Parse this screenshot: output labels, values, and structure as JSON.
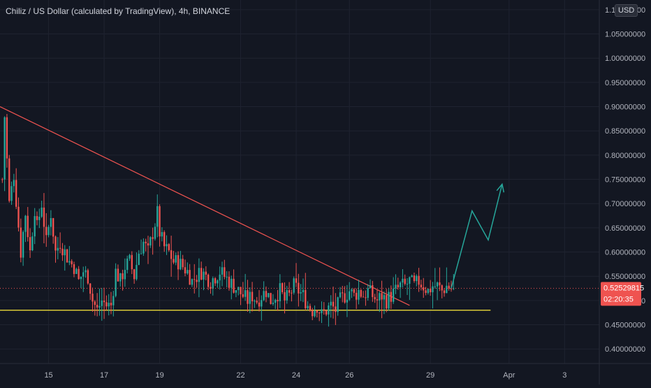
{
  "header": {
    "title": "Chiliz / US Dollar (calculated by TradingView), 4h, BINANCE",
    "currency": "USD"
  },
  "price_scale": {
    "ticks": [
      "1.10000000",
      "1.05000000",
      "1.00000000",
      "0.95000000",
      "0.90000000",
      "0.85000000",
      "0.80000000",
      "0.75000000",
      "0.70000000",
      "0.65000000",
      "0.60000000",
      "0.55000000",
      "0.50000000",
      "0.45000000",
      "0.40000000"
    ],
    "current_price_label": "0.52529815",
    "countdown_label": "02:20:35"
  },
  "time_scale": {
    "ticks": [
      {
        "label": "15",
        "bar": 20
      },
      {
        "label": "17",
        "bar": 44
      },
      {
        "label": "19",
        "bar": 68
      },
      {
        "label": "22",
        "bar": 103
      },
      {
        "label": "24",
        "bar": 127
      },
      {
        "label": "26",
        "bar": 150
      },
      {
        "label": "29",
        "bar": 185
      },
      {
        "label": "Apr",
        "bar": 219
      },
      {
        "label": "3",
        "bar": 243
      }
    ]
  },
  "colors": {
    "background": "#131722",
    "grid": "#1f2330",
    "up": "#26a69a",
    "down": "#ef5350",
    "trendline": "#ef5350",
    "support": "#ffeb3b",
    "projection": "#26a69a",
    "text": "#b2b5be",
    "price_badge": "#ef5350"
  },
  "chart_data": {
    "type": "candlestick",
    "symbol": "Chiliz / US Dollar",
    "interval": "4h",
    "exchange": "BINANCE",
    "ylim": [
      0.37,
      1.12
    ],
    "bar_count": 196,
    "bar_range": [
      -1,
      258
    ],
    "current_price": 0.52529815,
    "waypoints": [
      [
        0,
        0.75
      ],
      [
        1,
        0.88
      ],
      [
        3,
        0.7
      ],
      [
        5,
        0.76
      ],
      [
        8,
        0.6
      ],
      [
        10,
        0.68
      ],
      [
        12,
        0.6
      ],
      [
        14,
        0.69
      ],
      [
        15,
        0.65
      ],
      [
        17,
        0.7
      ],
      [
        19,
        0.62
      ],
      [
        21,
        0.68
      ],
      [
        23,
        0.6
      ],
      [
        25,
        0.62
      ],
      [
        27,
        0.6
      ],
      [
        29,
        0.58
      ],
      [
        31,
        0.57
      ],
      [
        33,
        0.54
      ],
      [
        35,
        0.56
      ],
      [
        37,
        0.55
      ],
      [
        39,
        0.5
      ],
      [
        41,
        0.48
      ],
      [
        43,
        0.5
      ],
      [
        45,
        0.49
      ],
      [
        47,
        0.49
      ],
      [
        49,
        0.56
      ],
      [
        51,
        0.54
      ],
      [
        53,
        0.57
      ],
      [
        55,
        0.58
      ],
      [
        57,
        0.55
      ],
      [
        59,
        0.6
      ],
      [
        61,
        0.62
      ],
      [
        63,
        0.6
      ],
      [
        65,
        0.64
      ],
      [
        67,
        0.68
      ],
      [
        68,
        0.64
      ],
      [
        70,
        0.61
      ],
      [
        72,
        0.6
      ],
      [
        74,
        0.58
      ],
      [
        76,
        0.58
      ],
      [
        78,
        0.57
      ],
      [
        80,
        0.56
      ],
      [
        82,
        0.54
      ],
      [
        84,
        0.55
      ],
      [
        86,
        0.56
      ],
      [
        88,
        0.55
      ],
      [
        90,
        0.54
      ],
      [
        92,
        0.55
      ],
      [
        94,
        0.56
      ],
      [
        96,
        0.55
      ],
      [
        98,
        0.54
      ],
      [
        100,
        0.53
      ],
      [
        102,
        0.52
      ],
      [
        104,
        0.51
      ],
      [
        106,
        0.5
      ],
      [
        108,
        0.51
      ],
      [
        110,
        0.5
      ],
      [
        112,
        0.51
      ],
      [
        114,
        0.52
      ],
      [
        116,
        0.5
      ],
      [
        118,
        0.51
      ],
      [
        120,
        0.52
      ],
      [
        122,
        0.5
      ],
      [
        124,
        0.51
      ],
      [
        126,
        0.53
      ],
      [
        128,
        0.52
      ],
      [
        130,
        0.51
      ],
      [
        132,
        0.49
      ],
      [
        134,
        0.48
      ],
      [
        136,
        0.49
      ],
      [
        138,
        0.47
      ],
      [
        140,
        0.48
      ],
      [
        142,
        0.49
      ],
      [
        144,
        0.48
      ],
      [
        146,
        0.5
      ],
      [
        148,
        0.51
      ],
      [
        150,
        0.52
      ],
      [
        152,
        0.51
      ],
      [
        154,
        0.52
      ],
      [
        156,
        0.51
      ],
      [
        158,
        0.52
      ],
      [
        160,
        0.51
      ],
      [
        162,
        0.5
      ],
      [
        164,
        0.51
      ],
      [
        166,
        0.5
      ],
      [
        168,
        0.51
      ],
      [
        170,
        0.52
      ],
      [
        172,
        0.53
      ],
      [
        174,
        0.53
      ],
      [
        176,
        0.54
      ],
      [
        178,
        0.53
      ],
      [
        180,
        0.54
      ],
      [
        182,
        0.53
      ],
      [
        184,
        0.52
      ],
      [
        186,
        0.53
      ],
      [
        188,
        0.53
      ],
      [
        190,
        0.52
      ],
      [
        192,
        0.53
      ],
      [
        194,
        0.525
      ]
    ],
    "trendline": [
      [
        -1,
        0.9
      ],
      [
        176,
        0.49
      ]
    ],
    "support_level": 0.48,
    "support_range": [
      -1,
      211
    ],
    "projection": [
      [
        194,
        0.525
      ],
      [
        203,
        0.685
      ],
      [
        210,
        0.625
      ],
      [
        216,
        0.74
      ]
    ]
  }
}
